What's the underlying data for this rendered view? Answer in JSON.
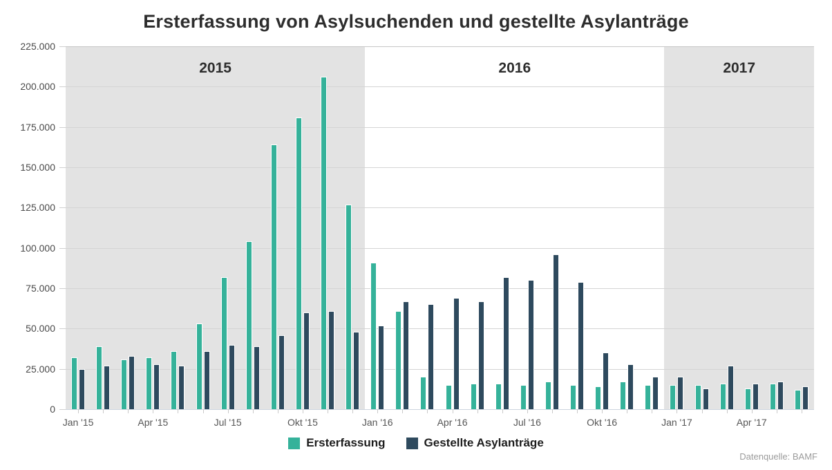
{
  "title": "Ersterfassung von Asylsuchenden und gestellte Asylanträge",
  "source_note": "Datenquelle: BAMF",
  "colors": {
    "ersterfassung": "#35b29a",
    "asylantraege": "#2e4a5e",
    "band_gray": "#e3e3e3",
    "grid": "#d4d4d4",
    "axis_line": "#ccd4de",
    "title_text": "#2d2d2d",
    "tick_text": "#555555"
  },
  "chart_data": {
    "type": "bar",
    "title": "Ersterfassung von Asylsuchenden und gestellte Asylanträge",
    "xlabel": "",
    "ylabel": "",
    "ylim": [
      0,
      225000
    ],
    "ytick_step": 25000,
    "ytick_labels": [
      "0",
      "25.000",
      "50.000",
      "75.000",
      "100.000",
      "125.000",
      "150.000",
      "175.000",
      "200.000",
      "225.000"
    ],
    "grid": true,
    "legend_position": "bottom",
    "categories": [
      "Jan '15",
      "Feb '15",
      "Mär '15",
      "Apr '15",
      "Mai '15",
      "Jun '15",
      "Jul '15",
      "Aug '15",
      "Sep '15",
      "Okt '15",
      "Nov '15",
      "Dez '15",
      "Jan '16",
      "Feb '16",
      "Mär '16",
      "Apr '16",
      "Mai '16",
      "Jun '16",
      "Jul '16",
      "Aug '16",
      "Sep '16",
      "Okt '16",
      "Nov '16",
      "Dez '16",
      "Jan '17",
      "Feb '17",
      "Mär '17",
      "Apr '17",
      "Mai '17",
      "Jun '17"
    ],
    "x_labels_shown_every": 3,
    "series": [
      {
        "name": "Ersterfassung",
        "color": "#35b29a",
        "values": [
          32000,
          39000,
          31000,
          32000,
          36000,
          53000,
          82000,
          104000,
          164000,
          181000,
          206000,
          127000,
          91000,
          61000,
          20000,
          15000,
          16000,
          16000,
          15000,
          17000,
          15000,
          14000,
          17000,
          15000,
          15000,
          15000,
          16000,
          13000,
          16000,
          12000
        ]
      },
      {
        "name": "Gestellte Asylanträge",
        "color": "#2e4a5e",
        "values": [
          25000,
          27000,
          33000,
          28000,
          27000,
          36000,
          40000,
          39000,
          46000,
          60000,
          61000,
          48000,
          52000,
          67000,
          65000,
          69000,
          67000,
          82000,
          80000,
          96000,
          79000,
          35000,
          28000,
          20000,
          20000,
          13000,
          27000,
          16000,
          17000,
          14000
        ]
      }
    ],
    "year_bands": [
      {
        "label": "2015",
        "start_month": 0,
        "end_month": 12,
        "shaded": true
      },
      {
        "label": "2016",
        "start_month": 12,
        "end_month": 24,
        "shaded": false
      },
      {
        "label": "2017",
        "start_month": 24,
        "end_month": 30,
        "shaded": true
      }
    ]
  }
}
